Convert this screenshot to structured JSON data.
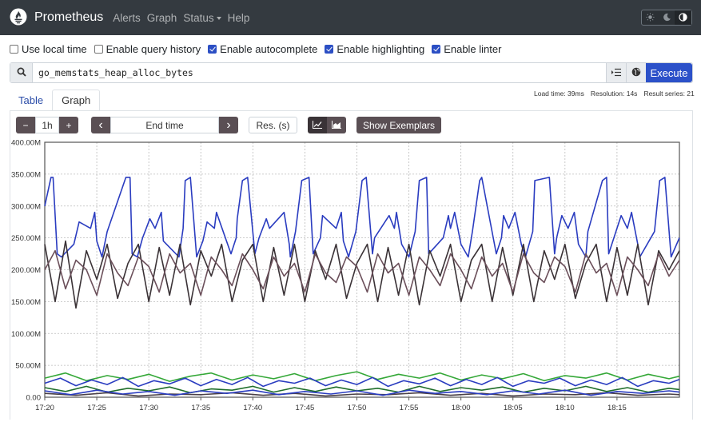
{
  "navbar": {
    "brand": "Prometheus",
    "links": [
      {
        "label": "Alerts",
        "name": "nav-alerts"
      },
      {
        "label": "Graph",
        "name": "nav-graph"
      },
      {
        "label": "Status",
        "name": "nav-status",
        "dropdown": true
      },
      {
        "label": "Help",
        "name": "nav-help"
      }
    ],
    "theme_buttons": [
      "sun-icon",
      "moon-icon",
      "contrast-icon"
    ],
    "active_theme": "contrast-icon"
  },
  "options": [
    {
      "label": "Use local time",
      "checked": false
    },
    {
      "label": "Enable query history",
      "checked": false
    },
    {
      "label": "Enable autocomplete",
      "checked": true
    },
    {
      "label": "Enable highlighting",
      "checked": true
    },
    {
      "label": "Enable linter",
      "checked": true
    }
  ],
  "query": {
    "expression": "go_memstats_heap_alloc_bytes",
    "execute_label": "Execute",
    "icons": [
      "search-icon",
      "history-list-icon",
      "metrics-explorer-icon"
    ]
  },
  "stats": {
    "load_time": "Load time: 39ms",
    "resolution": "Resolution: 14s",
    "result_series": "Result series: 21"
  },
  "tabs": [
    {
      "label": "Table",
      "active": false
    },
    {
      "label": "Graph",
      "active": true
    }
  ],
  "controls": {
    "range_minus": "−",
    "range_value": "1h",
    "range_plus": "+",
    "prev": "‹",
    "end_time_placeholder": "End time",
    "next": "›",
    "resolution_placeholder": "Res. (s)",
    "show_exemplars": "Show Exemplars",
    "chart_modes": [
      "line-chart-icon",
      "stacked-chart-icon"
    ]
  },
  "chart_data": {
    "type": "line",
    "title": "",
    "xlabel": "",
    "ylabel": "",
    "ylim": [
      0,
      400000000
    ],
    "yticks": [
      {
        "value": 0,
        "label": "0.00"
      },
      {
        "value": 50000000,
        "label": "50.00M"
      },
      {
        "value": 100000000,
        "label": "100.00M"
      },
      {
        "value": 150000000,
        "label": "150.00M"
      },
      {
        "value": 200000000,
        "label": "200.00M"
      },
      {
        "value": 250000000,
        "label": "250.00M"
      },
      {
        "value": 300000000,
        "label": "300.00M"
      },
      {
        "value": 350000000,
        "label": "350.00M"
      },
      {
        "value": 400000000,
        "label": "400.00M"
      }
    ],
    "xlim": [
      "17:20",
      "17:20+61min"
    ],
    "xticks": [
      "17:20",
      "17:25",
      "17:30",
      "17:35",
      "17:40",
      "17:45",
      "17:50",
      "17:55",
      "18:00",
      "18:05",
      "18:10",
      "18:15"
    ],
    "xtick_minutes": [
      0,
      5,
      10,
      15,
      20,
      25,
      30,
      35,
      40,
      45,
      50,
      55
    ],
    "x_range_minutes": [
      0,
      61
    ],
    "grid": true,
    "legend": "none",
    "series": [
      {
        "color": "#2a3cc0",
        "minutes": [
          0,
          0.6,
          0.8,
          1.2,
          1.6,
          2.8,
          3.3,
          4.4,
          4.8,
          5.0,
          5.5,
          6.0,
          7.8,
          8.2,
          8.4,
          8.9,
          9.4,
          10.1,
          10.6,
          11.2,
          11.4,
          12.9,
          13.3,
          13.5,
          14.0,
          14.6,
          15.2,
          15.6,
          16.3,
          16.5,
          17.9,
          18.4,
          18.5,
          19.0,
          19.5,
          20.2,
          20.6,
          21.3,
          21.6,
          23.0,
          23.5,
          23.6,
          24.1,
          24.7,
          25.4,
          25.8,
          26.5,
          26.7,
          28.0,
          28.5,
          28.7,
          29.2,
          29.9,
          30.5,
          30.9,
          31.5,
          31.7,
          33.1,
          33.6,
          33.8,
          34.3,
          35.0,
          35.6,
          36.0,
          36.7,
          36.9,
          38.3,
          38.8,
          39.0,
          39.4,
          40.0,
          40.7,
          41.1,
          41.8,
          42.0,
          43.4,
          43.9,
          44.1,
          44.6,
          45.2,
          45.8,
          46.2,
          46.9,
          47.1,
          48.5,
          49.0,
          49.2,
          49.7,
          50.3,
          50.9,
          51.3,
          52.0,
          52.2,
          53.6,
          54.0,
          54.2,
          54.7,
          55.4,
          56.0,
          56.4,
          57.0,
          57.2,
          58.6,
          59.1,
          59.6,
          60.2,
          61.0
        ],
        "values": [
          300000000,
          345000000,
          345000000,
          225000000,
          220000000,
          240000000,
          275000000,
          265000000,
          290000000,
          245000000,
          220000000,
          260000000,
          345000000,
          345000000,
          225000000,
          220000000,
          250000000,
          280000000,
          265000000,
          290000000,
          245000000,
          220000000,
          265000000,
          340000000,
          345000000,
          220000000,
          245000000,
          275000000,
          265000000,
          290000000,
          225000000,
          250000000,
          280000000,
          340000000,
          345000000,
          225000000,
          250000000,
          280000000,
          265000000,
          290000000,
          240000000,
          220000000,
          260000000,
          340000000,
          345000000,
          225000000,
          250000000,
          285000000,
          265000000,
          290000000,
          245000000,
          220000000,
          260000000,
          340000000,
          345000000,
          225000000,
          250000000,
          285000000,
          265000000,
          290000000,
          240000000,
          220000000,
          260000000,
          340000000,
          345000000,
          225000000,
          250000000,
          285000000,
          265000000,
          290000000,
          240000000,
          220000000,
          260000000,
          340000000,
          345000000,
          225000000,
          250000000,
          285000000,
          265000000,
          290000000,
          240000000,
          220000000,
          260000000,
          340000000,
          345000000,
          225000000,
          250000000,
          285000000,
          265000000,
          290000000,
          240000000,
          220000000,
          260000000,
          340000000,
          345000000,
          225000000,
          250000000,
          285000000,
          265000000,
          290000000,
          240000000,
          220000000,
          260000000,
          340000000,
          345000000,
          220000000,
          250000000,
          285000000,
          300000000
        ]
      },
      {
        "color": "#3a3236",
        "minutes": [
          0,
          1.0,
          2.0,
          3.0,
          4.0,
          5.0,
          6.0,
          7.0,
          8.0,
          9.0,
          10.0,
          11.0,
          12.0,
          13.0,
          14.0,
          15.0,
          16.0,
          17.0,
          18.0,
          19.0,
          20.0,
          21.0,
          22.0,
          23.0,
          24.0,
          25.0,
          26.0,
          27.0,
          28.0,
          29.0,
          30.0,
          31.0,
          32.0,
          33.0,
          34.0,
          35.0,
          36.0,
          37.0,
          38.0,
          39.0,
          40.0,
          41.0,
          42.0,
          43.0,
          44.0,
          45.0,
          46.0,
          47.0,
          48.0,
          49.0,
          50.0,
          51.0,
          52.0,
          53.0,
          54.0,
          55.0,
          56.0,
          57.0,
          58.0,
          59.0,
          60.0,
          61.0
        ],
        "values": [
          240000000,
          150000000,
          245000000,
          140000000,
          230000000,
          185000000,
          240000000,
          155000000,
          210000000,
          240000000,
          150000000,
          235000000,
          160000000,
          240000000,
          145000000,
          230000000,
          190000000,
          240000000,
          150000000,
          215000000,
          240000000,
          150000000,
          235000000,
          160000000,
          240000000,
          150000000,
          230000000,
          185000000,
          240000000,
          155000000,
          210000000,
          240000000,
          150000000,
          235000000,
          160000000,
          240000000,
          145000000,
          230000000,
          190000000,
          240000000,
          150000000,
          215000000,
          240000000,
          150000000,
          235000000,
          160000000,
          240000000,
          150000000,
          230000000,
          185000000,
          240000000,
          155000000,
          210000000,
          240000000,
          150000000,
          235000000,
          160000000,
          240000000,
          145000000,
          230000000,
          200000000,
          230000000
        ]
      },
      {
        "color": "#6b4f5a",
        "minutes": [
          0,
          1.0,
          2.0,
          3.0,
          4.0,
          5.0,
          6.0,
          7.0,
          8.0,
          9.0,
          10.0,
          11.0,
          12.0,
          13.0,
          14.0,
          15.0,
          16.0,
          17.0,
          18.0,
          19.0,
          20.0,
          21.0,
          22.0,
          23.0,
          24.0,
          25.0,
          26.0,
          27.0,
          28.0,
          29.0,
          30.0,
          31.0,
          32.0,
          33.0,
          34.0,
          35.0,
          36.0,
          37.0,
          38.0,
          39.0,
          40.0,
          41.0,
          42.0,
          43.0,
          44.0,
          45.0,
          46.0,
          47.0,
          48.0,
          49.0,
          50.0,
          51.0,
          52.0,
          53.0,
          54.0,
          55.0,
          56.0,
          57.0,
          58.0,
          59.0,
          60.0,
          61.0
        ],
        "values": [
          200000000,
          230000000,
          170000000,
          215000000,
          200000000,
          160000000,
          225000000,
          195000000,
          175000000,
          220000000,
          205000000,
          165000000,
          225000000,
          195000000,
          210000000,
          160000000,
          220000000,
          200000000,
          175000000,
          225000000,
          200000000,
          170000000,
          220000000,
          190000000,
          210000000,
          165000000,
          225000000,
          195000000,
          180000000,
          220000000,
          205000000,
          165000000,
          225000000,
          195000000,
          210000000,
          160000000,
          220000000,
          200000000,
          175000000,
          225000000,
          200000000,
          170000000,
          220000000,
          190000000,
          210000000,
          165000000,
          225000000,
          195000000,
          180000000,
          220000000,
          205000000,
          165000000,
          225000000,
          195000000,
          210000000,
          160000000,
          220000000,
          200000000,
          175000000,
          225000000,
          190000000,
          215000000
        ]
      },
      {
        "color": "#35a838",
        "minutes": [
          0,
          2,
          4,
          6,
          8,
          10,
          12,
          14,
          16,
          18,
          20,
          22,
          24,
          26,
          28,
          30,
          32,
          34,
          36,
          38,
          40,
          42,
          44,
          46,
          48,
          50,
          52,
          54,
          56,
          58,
          60,
          61
        ],
        "values": [
          30000000,
          38000000,
          26000000,
          34000000,
          28000000,
          36000000,
          25000000,
          33000000,
          38000000,
          27000000,
          35000000,
          29000000,
          37000000,
          26000000,
          34000000,
          40000000,
          28000000,
          36000000,
          30000000,
          38000000,
          27000000,
          35000000,
          29000000,
          37000000,
          26000000,
          34000000,
          30000000,
          38000000,
          27000000,
          36000000,
          29000000,
          33000000
        ]
      },
      {
        "color": "#2a3cc0",
        "minutes": [
          0,
          1.5,
          3,
          4.5,
          6,
          7.5,
          9,
          10.5,
          12,
          13.5,
          15,
          16.5,
          18,
          19.5,
          21,
          22.5,
          24,
          25.5,
          27,
          28.5,
          30,
          31.5,
          33,
          34.5,
          36,
          37.5,
          39,
          40.5,
          42,
          43.5,
          45,
          46.5,
          48,
          49.5,
          51,
          52.5,
          54,
          55.5,
          57,
          58.5,
          60,
          61
        ],
        "values": [
          22000000,
          30000000,
          18000000,
          27000000,
          20000000,
          31000000,
          17000000,
          26000000,
          21000000,
          30000000,
          18000000,
          28000000,
          20000000,
          31000000,
          17000000,
          26000000,
          22000000,
          30000000,
          18000000,
          27000000,
          20000000,
          31000000,
          17000000,
          26000000,
          21000000,
          30000000,
          18000000,
          28000000,
          20000000,
          31000000,
          17000000,
          26000000,
          22000000,
          30000000,
          18000000,
          27000000,
          20000000,
          31000000,
          17000000,
          26000000,
          22000000,
          28000000
        ]
      },
      {
        "color": "#1f6e2a",
        "minutes": [
          0,
          2,
          4,
          6,
          8,
          10,
          12,
          14,
          16,
          18,
          20,
          22,
          24,
          26,
          28,
          30,
          32,
          34,
          36,
          38,
          40,
          42,
          44,
          46,
          48,
          50,
          52,
          54,
          56,
          58,
          60,
          61
        ],
        "values": [
          15000000,
          9000000,
          17000000,
          8000000,
          14000000,
          10000000,
          16000000,
          7000000,
          13000000,
          11000000,
          17000000,
          8000000,
          15000000,
          9000000,
          16000000,
          10000000,
          14000000,
          8000000,
          17000000,
          9000000,
          15000000,
          11000000,
          16000000,
          8000000,
          14000000,
          10000000,
          17000000,
          9000000,
          15000000,
          8000000,
          14000000,
          12000000
        ]
      },
      {
        "color": "#4a4048",
        "minutes": [
          0,
          3,
          6,
          9,
          12,
          15,
          18,
          21,
          24,
          27,
          30,
          33,
          36,
          39,
          42,
          45,
          48,
          51,
          54,
          57,
          60,
          61
        ],
        "values": [
          6000000,
          3000000,
          7000000,
          2000000,
          5000000,
          4000000,
          7000000,
          3000000,
          6000000,
          2000000,
          5000000,
          4000000,
          7000000,
          3000000,
          6000000,
          2000000,
          5000000,
          4000000,
          7000000,
          3000000,
          5000000,
          4000000
        ]
      },
      {
        "color": "#2a3cc0",
        "minutes": [
          0,
          2.5,
          5,
          7.5,
          10,
          12.5,
          15,
          17.5,
          20,
          22.5,
          25,
          27.5,
          30,
          32.5,
          35,
          37.5,
          40,
          42.5,
          45,
          47.5,
          50,
          52.5,
          55,
          57.5,
          60,
          61
        ],
        "values": [
          10000000,
          4000000,
          11000000,
          5000000,
          9000000,
          3000000,
          10000000,
          6000000,
          11000000,
          4000000,
          9000000,
          5000000,
          10000000,
          3000000,
          11000000,
          6000000,
          9000000,
          4000000,
          10000000,
          5000000,
          11000000,
          3000000,
          9000000,
          6000000,
          10000000,
          8000000
        ]
      }
    ]
  }
}
